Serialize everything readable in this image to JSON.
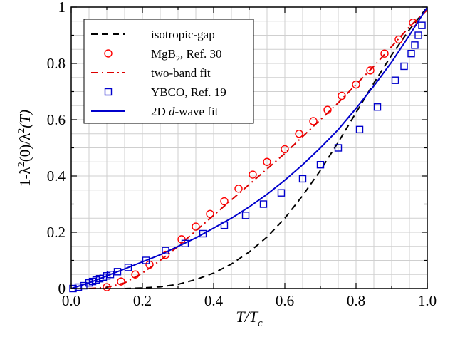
{
  "chart_data": {
    "type": "scatter",
    "xlabel": {
      "main": "T/T",
      "sub": "c"
    },
    "ylabel": {
      "prefix": "1-λ",
      "sup1": "2",
      "mid": "(0)/λ",
      "sup2": "2",
      "suffix": "(T)"
    },
    "xlim": [
      0,
      1
    ],
    "ylim": [
      0,
      1
    ],
    "x_ticks": [
      "0.0",
      "0.2",
      "0.4",
      "0.6",
      "0.8",
      "1.0"
    ],
    "y_ticks": [
      "0",
      "0.2",
      "0.4",
      "0.6",
      "0.8",
      "1"
    ],
    "grid": true,
    "legend_position": "top-left",
    "legend": [
      {
        "label": "isotropic-gap",
        "style": "dashed",
        "color": "#000000"
      },
      {
        "label": "MgB",
        "sub": "2",
        "label_after": ", Ref. 30",
        "style": "circle",
        "color": "#ff0000"
      },
      {
        "label": "two-band fit",
        "style": "dashdot",
        "color": "#dd0000"
      },
      {
        "label": "YBCO, Ref. 19",
        "style": "square",
        "color": "#0000cc"
      },
      {
        "label": "2D ",
        "italic": "d",
        "label_after": "-wave fit",
        "style": "solid",
        "color": "#0000cc"
      }
    ],
    "series": [
      {
        "name": "isotropic-gap",
        "kind": "line",
        "style": "dashed",
        "color": "#000000",
        "x": [
          0.15,
          0.2,
          0.25,
          0.3,
          0.35,
          0.4,
          0.45,
          0.5,
          0.55,
          0.6,
          0.65,
          0.7,
          0.75,
          0.8,
          0.85,
          0.9,
          0.95,
          1.0
        ],
        "y": [
          0.0,
          0.002,
          0.006,
          0.015,
          0.032,
          0.055,
          0.087,
          0.13,
          0.183,
          0.25,
          0.33,
          0.42,
          0.52,
          0.625,
          0.73,
          0.83,
          0.92,
          1.0
        ]
      },
      {
        "name": "MgB2, Ref. 30",
        "kind": "scatter",
        "marker": "circle",
        "color": "#ff0000",
        "x": [
          0.1,
          0.14,
          0.18,
          0.22,
          0.265,
          0.31,
          0.35,
          0.39,
          0.43,
          0.47,
          0.51,
          0.55,
          0.6,
          0.64,
          0.68,
          0.72,
          0.76,
          0.8,
          0.84,
          0.88,
          0.92,
          0.96
        ],
        "y": [
          0.005,
          0.025,
          0.05,
          0.085,
          0.12,
          0.175,
          0.22,
          0.265,
          0.31,
          0.355,
          0.405,
          0.45,
          0.495,
          0.55,
          0.595,
          0.635,
          0.685,
          0.725,
          0.775,
          0.835,
          0.885,
          0.945
        ]
      },
      {
        "name": "two-band fit",
        "kind": "line",
        "style": "dashdot",
        "color": "#dd0000",
        "x": [
          0.05,
          0.1,
          0.15,
          0.2,
          0.25,
          0.3,
          0.35,
          0.4,
          0.45,
          0.5,
          0.55,
          0.6,
          0.65,
          0.7,
          0.75,
          0.8,
          0.85,
          0.9,
          0.95,
          1.0
        ],
        "y": [
          0.0,
          0.004,
          0.02,
          0.055,
          0.1,
          0.15,
          0.205,
          0.26,
          0.315,
          0.37,
          0.425,
          0.48,
          0.54,
          0.6,
          0.66,
          0.725,
          0.79,
          0.86,
          0.93,
          0.99
        ]
      },
      {
        "name": "YBCO, Ref. 19",
        "kind": "scatter",
        "marker": "square",
        "color": "#0000cc",
        "x": [
          0.005,
          0.02,
          0.035,
          0.05,
          0.06,
          0.07,
          0.08,
          0.09,
          0.1,
          0.11,
          0.13,
          0.16,
          0.21,
          0.265,
          0.32,
          0.37,
          0.43,
          0.49,
          0.54,
          0.59,
          0.65,
          0.7,
          0.75,
          0.81,
          0.86,
          0.91,
          0.935,
          0.955,
          0.965,
          0.975,
          0.985
        ],
        "y": [
          0.0,
          0.005,
          0.01,
          0.02,
          0.025,
          0.03,
          0.035,
          0.04,
          0.045,
          0.05,
          0.06,
          0.075,
          0.1,
          0.135,
          0.16,
          0.195,
          0.225,
          0.26,
          0.3,
          0.34,
          0.39,
          0.44,
          0.5,
          0.565,
          0.645,
          0.74,
          0.79,
          0.835,
          0.865,
          0.9,
          0.935
        ]
      },
      {
        "name": "2D d-wave fit",
        "kind": "line",
        "style": "solid",
        "color": "#0000cc",
        "x": [
          0.0,
          0.05,
          0.1,
          0.15,
          0.2,
          0.25,
          0.3,
          0.35,
          0.4,
          0.45,
          0.5,
          0.55,
          0.6,
          0.65,
          0.7,
          0.75,
          0.8,
          0.85,
          0.9,
          0.95,
          1.0
        ],
        "y": [
          0.0,
          0.02,
          0.045,
          0.07,
          0.095,
          0.12,
          0.15,
          0.18,
          0.215,
          0.25,
          0.29,
          0.335,
          0.385,
          0.44,
          0.5,
          0.565,
          0.64,
          0.72,
          0.805,
          0.9,
          1.0
        ]
      }
    ]
  }
}
